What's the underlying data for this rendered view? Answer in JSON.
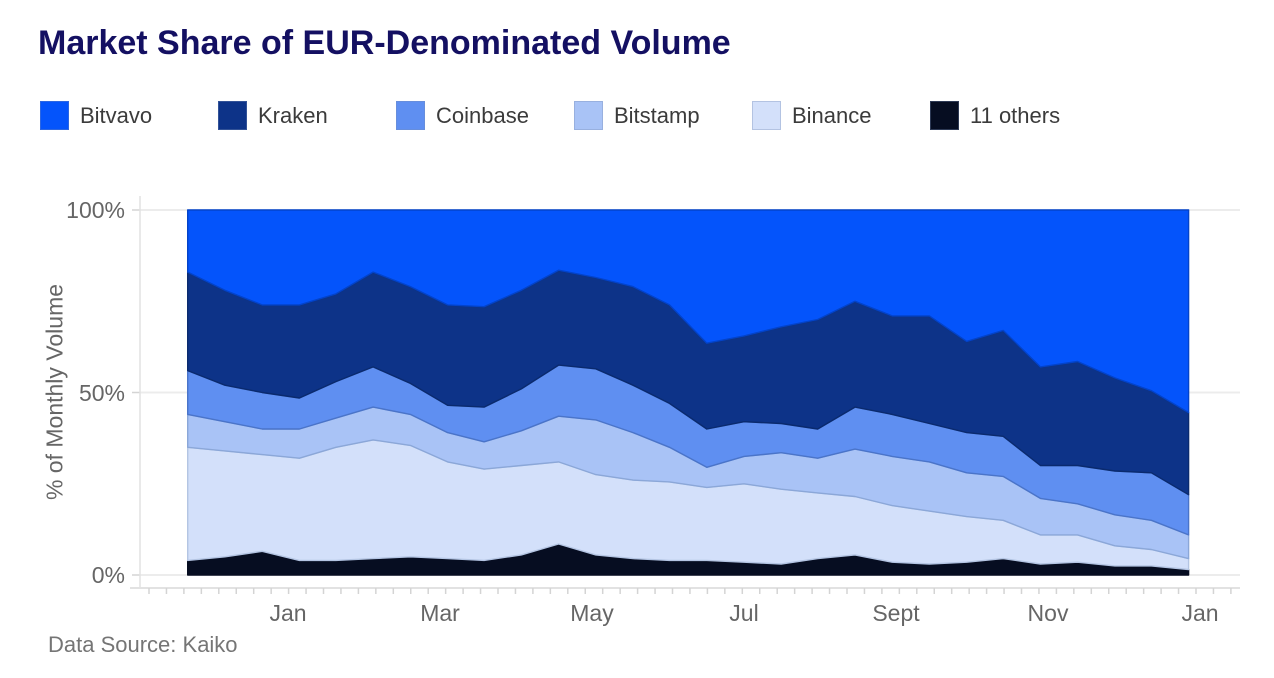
{
  "title": {
    "text": "Market Share of EUR-Denominated Volume",
    "color": "#141062"
  },
  "source_note": "Data Source: Kaiko",
  "colors": {
    "grid": "#ececec",
    "axis_line": "#e2e2e2",
    "tick_mark": "#d4d4d4",
    "axis_text": "#666666",
    "legend_text": "#3b3b3b",
    "background": "#ffffff"
  },
  "chart_data": {
    "type": "area",
    "stacked": true,
    "normalized": "percent",
    "title": "Market Share of EUR-Denominated Volume",
    "xlabel": "",
    "ylabel": "% of Monthly Volume",
    "ylim": [
      0,
      100
    ],
    "grid": "horizontal",
    "legend_position": "top",
    "y_ticks": [
      {
        "value": 100,
        "label": "100%"
      },
      {
        "value": 50,
        "label": "50%"
      },
      {
        "value": 0,
        "label": "0%"
      }
    ],
    "x_ticks": [
      {
        "month_pos": 0,
        "label": "Jan"
      },
      {
        "month_pos": 2,
        "label": "Mar"
      },
      {
        "month_pos": 4,
        "label": "May"
      },
      {
        "month_pos": 6,
        "label": "Jul"
      },
      {
        "month_pos": 8,
        "label": "Sept"
      },
      {
        "month_pos": 10,
        "label": "Nov"
      },
      {
        "month_pos": 12,
        "label": "Jan"
      }
    ],
    "x_months": [
      -1.32,
      -0.83,
      -0.34,
      0.15,
      0.63,
      1.12,
      1.61,
      2.1,
      2.58,
      3.07,
      3.56,
      4.05,
      4.54,
      5.02,
      5.51,
      6.0,
      6.49,
      6.97,
      7.46,
      7.95,
      8.44,
      8.93,
      9.41,
      9.9,
      10.39,
      10.88,
      11.36,
      11.85
    ],
    "stack_order_bottom_to_top": [
      "11 others",
      "Binance",
      "Bitstamp",
      "Coinbase",
      "Kraken",
      "Bitvavo"
    ],
    "series": [
      {
        "name": "Bitvavo",
        "color": "#0454fb",
        "stroke": "#0343c9",
        "values": [
          17,
          22,
          26,
          26,
          23,
          17,
          21,
          26,
          26.5,
          22,
          16.5,
          18.5,
          21,
          26,
          36.5,
          34.5,
          32,
          30,
          25,
          29,
          29,
          36,
          33,
          43,
          41.5,
          46,
          49.5,
          55.5
        ]
      },
      {
        "name": "Kraken",
        "color": "#0d3388",
        "stroke": "#0a2a6e",
        "values": [
          27,
          26,
          24,
          25.5,
          24,
          26,
          26.5,
          27.5,
          27.5,
          27,
          26,
          25,
          27,
          27,
          23.5,
          23.5,
          26.5,
          30,
          29,
          27,
          29.5,
          25,
          29,
          27,
          28.5,
          25.5,
          22.5,
          22.5
        ]
      },
      {
        "name": "Coinbase",
        "color": "#5f8ff1",
        "stroke": "#4a74c9",
        "values": [
          12,
          10,
          10,
          8.5,
          10,
          11,
          8.5,
          7.5,
          9.5,
          11.5,
          14,
          14,
          13,
          12,
          10.5,
          9.5,
          8,
          8,
          11.5,
          11.5,
          10.5,
          11,
          11,
          9,
          10.5,
          12,
          13,
          11
        ]
      },
      {
        "name": "Bitstamp",
        "color": "#a9c3f6",
        "stroke": "#8ba7d8",
        "values": [
          9,
          8,
          7,
          8,
          8,
          9,
          8.5,
          8,
          7.5,
          9.5,
          12.5,
          15,
          13,
          9.5,
          5.5,
          7.5,
          10,
          9.5,
          13,
          13.5,
          13.5,
          12,
          12,
          10,
          8.5,
          8.5,
          8,
          6.5
        ]
      },
      {
        "name": "Binance",
        "color": "#d3e0fa",
        "stroke": "#b4c5e3",
        "values": [
          31,
          29,
          26.5,
          28,
          31,
          32.5,
          30.5,
          26.5,
          25,
          24.5,
          22.5,
          22,
          21.5,
          21.5,
          20,
          21.5,
          20.5,
          18,
          16,
          15.5,
          14.5,
          12.5,
          10.5,
          8,
          7.5,
          5.5,
          4.5,
          3
        ]
      },
      {
        "name": "11 others",
        "color": "#060d21",
        "stroke": "#060d21",
        "values": [
          4,
          5,
          6.5,
          4,
          4,
          4.5,
          5,
          4.5,
          4,
          5.5,
          8.5,
          5.5,
          4.5,
          4,
          4,
          3.5,
          3,
          4.5,
          5.5,
          3.5,
          3,
          3.5,
          4.5,
          3,
          3.5,
          2.5,
          2.5,
          1.5
        ]
      }
    ]
  }
}
